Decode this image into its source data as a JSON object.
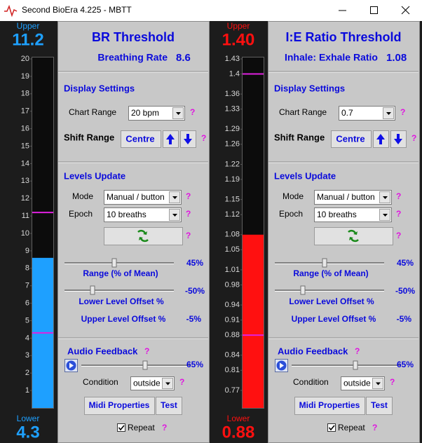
{
  "window": {
    "title": "Second BioEra 4.225 - MBTT"
  },
  "panels": [
    {
      "meter": {
        "upper_label": "Upper",
        "upper": 11.2,
        "lower_label": "Lower",
        "lower": 4.3,
        "range": [
          0,
          20
        ],
        "ticks": [
          1,
          2,
          3,
          4,
          5,
          6,
          7,
          8,
          9,
          10,
          11,
          12,
          13,
          14,
          15,
          16,
          17,
          18,
          19,
          20
        ],
        "color": "#1ea0ff"
      },
      "title": "BR Threshold",
      "reading": {
        "label": "Breathing Rate",
        "value": 8.6
      },
      "display_settings": {
        "title": "Display Settings",
        "chart_range_label": "Chart Range",
        "chart_range": "20 bpm",
        "shift_range_label": "Shift Range",
        "centre": "Centre"
      },
      "levels_update": {
        "title": "Levels Update",
        "mode_label": "Mode",
        "mode": "Manual / button",
        "epoch_label": "Epoch",
        "epoch": "10 breaths",
        "range": {
          "label": "Range (% of Mean)",
          "value": "45%"
        },
        "lower_offset": {
          "label": "Lower Level Offset %",
          "value": "-50%"
        },
        "upper_offset": {
          "label": "Upper Level Offset %",
          "value": "-5%"
        }
      },
      "audio_feedback": {
        "title": "Audio Feedback",
        "volume": "65%",
        "condition_label": "Condition",
        "condition": "outside",
        "midi": "Midi Properties",
        "test": "Test",
        "repeat": "Repeat"
      },
      "help": "?"
    },
    {
      "meter": {
        "upper_label": "Upper",
        "upper": {
          "value": 1.4,
          "label": "1.40"
        },
        "lower_label": "Lower",
        "lower": 0.88,
        "range": [
          0.735,
          1.43
        ],
        "ticks": [
          0.77,
          0.81,
          0.84,
          0.88,
          0.91,
          0.94,
          0.98,
          1.01,
          1.05,
          1.08,
          1.12,
          1.15,
          1.19,
          1.22,
          1.26,
          1.29,
          1.33,
          1.36,
          1.4,
          1.43
        ],
        "color": "#ff1010"
      },
      "title": "I:E Ratio Threshold",
      "reading": {
        "label": "Inhale: Exhale Ratio",
        "value": 1.08
      },
      "display_settings": {
        "title": "Display Settings",
        "chart_range_label": "Chart Range",
        "chart_range": "0.7",
        "shift_range_label": "Shift Range",
        "centre": "Centre"
      },
      "levels_update": {
        "title": "Levels Update",
        "mode_label": "Mode",
        "mode": "Manual / button",
        "epoch_label": "Epoch",
        "epoch": "10 breaths",
        "range": {
          "label": "Range (% of Mean)",
          "value": "45%"
        },
        "lower_offset": {
          "label": "Lower Level Offset %",
          "value": "-50%"
        },
        "upper_offset": {
          "label": "Upper Level Offset %",
          "value": "-5%"
        }
      },
      "audio_feedback": {
        "title": "Audio Feedback",
        "volume": "65%",
        "condition_label": "Condition",
        "condition": "outside",
        "midi": "Midi Properties",
        "test": "Test",
        "repeat": "Repeat"
      },
      "help": "?"
    }
  ]
}
